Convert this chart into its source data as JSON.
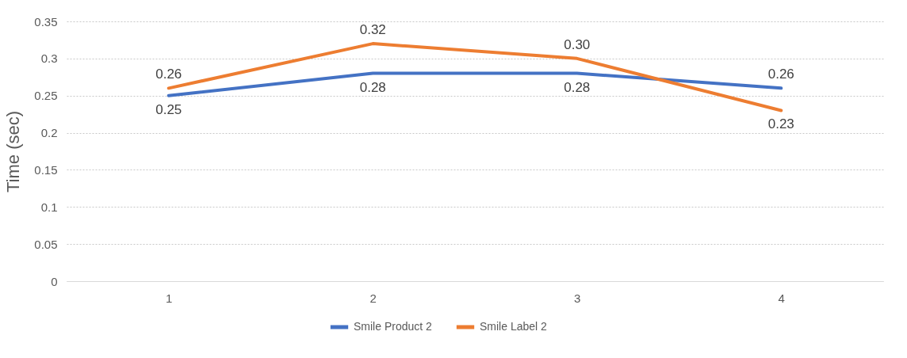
{
  "chart_data": {
    "type": "line",
    "ylabel": "Time (sec)",
    "categories": [
      "1",
      "2",
      "3",
      "4"
    ],
    "series": [
      {
        "name": "Smile Product 2",
        "color": "#4472c4",
        "values": [
          0.25,
          0.28,
          0.28,
          0.26
        ],
        "value_labels": [
          "0.25",
          "0.28",
          "0.28",
          "0.26"
        ]
      },
      {
        "name": "Smile Label 2",
        "color": "#ed7d31",
        "values": [
          0.26,
          0.32,
          0.3,
          0.23
        ],
        "value_labels": [
          "0.26",
          "0.32",
          "0.30",
          "0.23"
        ]
      }
    ],
    "ylim": [
      0,
      0.35
    ],
    "yticks": [
      0,
      0.05,
      0.1,
      0.15,
      0.2,
      0.25,
      0.3,
      0.35
    ],
    "grid": "y",
    "legend": "bottom",
    "marker": "none",
    "line_style": "solid"
  }
}
